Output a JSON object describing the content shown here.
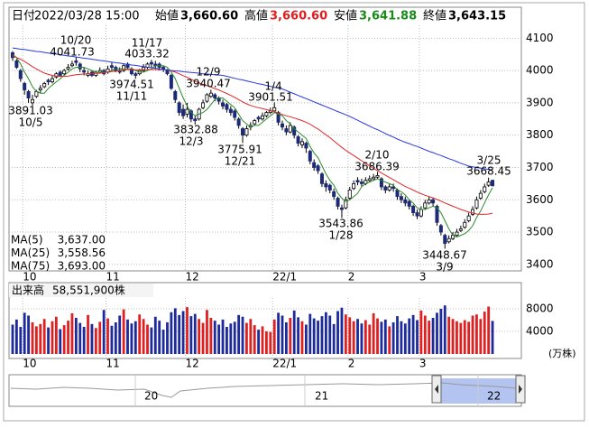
{
  "chart_data": [
    {
      "type": "candlestick",
      "header": {
        "date_label": "日付",
        "datetime": "2022/03/28 15:00",
        "open_label": "始値",
        "open": "3,660.60",
        "high_label": "高値",
        "high": "3,660.60",
        "low_label": "安値",
        "low": "3,641.88",
        "close_label": "終値",
        "close": "3,643.15"
      },
      "categories": [
        null,
        null,
        null,
        "10",
        null,
        null,
        null,
        null,
        null,
        null,
        null,
        null,
        null,
        null,
        null,
        null,
        null,
        null,
        null,
        null,
        null,
        null,
        null,
        null,
        "11",
        null,
        null,
        null,
        null,
        null,
        null,
        null,
        null,
        null,
        null,
        null,
        null,
        null,
        null,
        null,
        null,
        null,
        null,
        null,
        "12",
        null,
        null,
        null,
        null,
        null,
        null,
        null,
        null,
        null,
        null,
        null,
        null,
        null,
        null,
        null,
        null,
        null,
        null,
        null,
        null,
        null,
        "22/1",
        null,
        null,
        null,
        null,
        null,
        null,
        null,
        null,
        null,
        null,
        null,
        null,
        null,
        null,
        null,
        null,
        null,
        null,
        "2",
        null,
        null,
        null,
        null,
        null,
        null,
        null,
        null,
        null,
        null,
        null,
        null,
        null,
        null,
        null,
        null,
        null,
        "3",
        null,
        null,
        null,
        null,
        null,
        null,
        null,
        null,
        null,
        null,
        null,
        null,
        null,
        null,
        null,
        null,
        null,
        null
      ],
      "open": [
        4055,
        4030,
        4000,
        3960,
        3935,
        3900,
        3920,
        3940,
        3950,
        3970,
        3965,
        3980,
        3995,
        3990,
        4005,
        4015,
        4030,
        4020,
        4000,
        3985,
        3995,
        3985,
        3995,
        4000,
        3995,
        4015,
        4010,
        4000,
        4000,
        4020,
        4005,
        3990,
        3990,
        4000,
        4010,
        4025,
        4020,
        4020,
        4010,
        4000,
        3985,
        3935,
        3900,
        3880,
        3865,
        3875,
        3850,
        3850,
        3885,
        3905,
        3920,
        3925,
        3915,
        3900,
        3895,
        3880,
        3875,
        3850,
        3820,
        3800,
        3825,
        3835,
        3855,
        3850,
        3860,
        3870,
        3875,
        3870,
        3835,
        3820,
        3810,
        3825,
        3795,
        3770,
        3775,
        3750,
        3715,
        3705,
        3680,
        3650,
        3645,
        3625,
        3605,
        3575,
        3575,
        3605,
        3635,
        3660,
        3655,
        3650,
        3660,
        3665,
        3670,
        3665,
        3640,
        3630,
        3640,
        3630,
        3610,
        3600,
        3595,
        3580,
        3560,
        3550,
        3575,
        3590,
        3600,
        3580,
        3520,
        3490,
        3470,
        3480,
        3490,
        3505,
        3515,
        3535,
        3555,
        3575,
        3605,
        3625,
        3645,
        3660.6
      ],
      "high": [
        4060,
        4035,
        4005,
        3965,
        3940,
        3925,
        3940,
        3955,
        3965,
        3975,
        3985,
        3995,
        4000,
        4005,
        4020,
        4030,
        4041.73,
        4025,
        4010,
        4000,
        4000,
        4000,
        4010,
        4005,
        4015,
        4025,
        4015,
        4010,
        4020,
        4025,
        4010,
        3995,
        4005,
        4020,
        4025,
        4033.32,
        4030,
        4025,
        4015,
        4005,
        3990,
        3940,
        3905,
        3895,
        3900,
        3880,
        3860,
        3885,
        3910,
        3930,
        3940.47,
        3930,
        3920,
        3910,
        3900,
        3890,
        3880,
        3855,
        3825,
        3830,
        3840,
        3850,
        3860,
        3870,
        3875,
        3885,
        3901.51,
        3875,
        3845,
        3830,
        3840,
        3830,
        3800,
        3790,
        3780,
        3755,
        3725,
        3710,
        3685,
        3660,
        3650,
        3635,
        3610,
        3585,
        3610,
        3640,
        3660,
        3670,
        3665,
        3670,
        3675,
        3680,
        3686.39,
        3670,
        3645,
        3650,
        3650,
        3635,
        3620,
        3610,
        3600,
        3585,
        3570,
        3580,
        3600,
        3610,
        3605,
        3585,
        3525,
        3495,
        3490,
        3500,
        3510,
        3520,
        3540,
        3560,
        3580,
        3610,
        3630,
        3650,
        3668.45,
        3660.6
      ],
      "low": [
        4030,
        4005,
        3965,
        3925,
        3900,
        3891.03,
        3915,
        3930,
        3945,
        3955,
        3960,
        3975,
        3980,
        3985,
        4000,
        4010,
        4015,
        3995,
        3985,
        3980,
        3980,
        3980,
        3990,
        3985,
        3990,
        4000,
        3995,
        3990,
        3995,
        4005,
        3985,
        3974.51,
        3985,
        3995,
        4005,
        4010,
        4005,
        4000,
        3995,
        3985,
        3940,
        3900,
        3860,
        3850,
        3855,
        3840,
        3832.88,
        3845,
        3880,
        3900,
        3915,
        3905,
        3895,
        3880,
        3870,
        3860,
        3845,
        3820,
        3775.91,
        3795,
        3815,
        3830,
        3840,
        3845,
        3855,
        3865,
        3870,
        3830,
        3815,
        3800,
        3805,
        3790,
        3765,
        3760,
        3745,
        3710,
        3690,
        3680,
        3640,
        3625,
        3620,
        3600,
        3570,
        3543.86,
        3570,
        3600,
        3630,
        3645,
        3640,
        3645,
        3655,
        3660,
        3665,
        3630,
        3620,
        3625,
        3625,
        3600,
        3590,
        3580,
        3570,
        3550,
        3540,
        3545,
        3570,
        3585,
        3580,
        3520,
        3490,
        3448.67,
        3465,
        3475,
        3485,
        3500,
        3510,
        3530,
        3550,
        3570,
        3600,
        3620,
        3640,
        3641.88
      ],
      "close": [
        4040,
        4010,
        3975,
        3940,
        3915,
        3910,
        3935,
        3945,
        3960,
        3965,
        3975,
        3990,
        3985,
        4000,
        4010,
        4020,
        4025,
        4005,
        3995,
        3990,
        3985,
        3995,
        4000,
        3990,
        4005,
        4010,
        4000,
        3995,
        4015,
        4010,
        3990,
        3985,
        4000,
        4010,
        4020,
        4020,
        4015,
        4010,
        4005,
        3990,
        3945,
        3910,
        3870,
        3860,
        3880,
        3850,
        3845,
        3880,
        3900,
        3925,
        3930,
        3915,
        3905,
        3890,
        3880,
        3870,
        3855,
        3830,
        3800,
        3820,
        3830,
        3845,
        3850,
        3860,
        3870,
        3875,
        3885,
        3840,
        3825,
        3810,
        3830,
        3800,
        3775,
        3780,
        3760,
        3720,
        3700,
        3690,
        3650,
        3640,
        3630,
        3610,
        3580,
        3570,
        3600,
        3630,
        3650,
        3655,
        3650,
        3660,
        3665,
        3670,
        3675,
        3640,
        3630,
        3640,
        3635,
        3610,
        3600,
        3590,
        3580,
        3560,
        3550,
        3570,
        3590,
        3600,
        3590,
        3530,
        3500,
        3465,
        3480,
        3490,
        3500,
        3510,
        3530,
        3550,
        3570,
        3600,
        3620,
        3640,
        3655,
        3643.15
      ],
      "series": [
        {
          "name": "MA(5)",
          "color": "#2a8a2a",
          "value_label": "3,637.00",
          "values": [
            4050,
            4040,
            4020,
            3995,
            3975,
            3950,
            3935,
            3930,
            3930,
            3945,
            3955,
            3965,
            3975,
            3985,
            3995,
            4005,
            4010,
            4010,
            4010,
            4005,
            4000,
            3995,
            3995,
            3995,
            3995,
            4000,
            4005,
            4005,
            4005,
            4005,
            4005,
            4000,
            3995,
            3995,
            4000,
            4005,
            4015,
            4015,
            4015,
            4010,
            3995,
            3975,
            3945,
            3915,
            3890,
            3870,
            3860,
            3865,
            3870,
            3880,
            3895,
            3910,
            3915,
            3915,
            3905,
            3895,
            3885,
            3865,
            3845,
            3835,
            3825,
            3830,
            3830,
            3840,
            3850,
            3860,
            3870,
            3865,
            3860,
            3845,
            3835,
            3820,
            3810,
            3800,
            3790,
            3765,
            3745,
            3730,
            3705,
            3680,
            3660,
            3645,
            3620,
            3605,
            3595,
            3600,
            3610,
            3620,
            3640,
            3650,
            3655,
            3660,
            3665,
            3660,
            3655,
            3650,
            3645,
            3630,
            3625,
            3615,
            3600,
            3590,
            3575,
            3570,
            3570,
            3575,
            3580,
            3575,
            3560,
            3535,
            3510,
            3490,
            3485,
            3490,
            3495,
            3505,
            3520,
            3545,
            3565,
            3590,
            3615,
            3637
          ]
        },
        {
          "name": "MA(25)",
          "color": "#e02828",
          "value_label": "3,558.56",
          "values": [
            4045,
            4040,
            4035,
            4028,
            4020,
            4012,
            4005,
            3998,
            3992,
            3988,
            3985,
            3983,
            3982,
            3982,
            3983,
            3985,
            3987,
            3988,
            3989,
            3990,
            3990,
            3991,
            3992,
            3993,
            3995,
            3997,
            3998,
            4000,
            4002,
            4003,
            4003,
            4002,
            4002,
            4003,
            4003,
            4003,
            4003,
            4003,
            4003,
            4002,
            3999,
            3995,
            3990,
            3984,
            3979,
            3973,
            3967,
            3962,
            3957,
            3953,
            3949,
            3944,
            3940,
            3934,
            3929,
            3923,
            3917,
            3910,
            3903,
            3897,
            3892,
            3888,
            3885,
            3882,
            3879,
            3876,
            3873,
            3868,
            3864,
            3860,
            3857,
            3853,
            3849,
            3845,
            3840,
            3834,
            3826,
            3819,
            3810,
            3801,
            3792,
            3782,
            3772,
            3762,
            3753,
            3745,
            3737,
            3729,
            3721,
            3713,
            3705,
            3697,
            3690,
            3683,
            3676,
            3669,
            3662,
            3655,
            3648,
            3641,
            3636,
            3630,
            3624,
            3619,
            3614,
            3610,
            3606,
            3601,
            3596,
            3590,
            3585,
            3580,
            3575,
            3570,
            3566,
            3562,
            3559,
            3556,
            3555,
            3555,
            3556,
            3558.56
          ]
        },
        {
          "name": "MA(75)",
          "color": "#2838e0",
          "value_label": "3,693.00",
          "values": [
            4070,
            4068,
            4066,
            4065,
            4063,
            4061,
            4059,
            4058,
            4056,
            4054,
            4052,
            4051,
            4049,
            4047,
            4045,
            4044,
            4042,
            4040,
            4038,
            4037,
            4035,
            4033,
            4031,
            4030,
            4028,
            4026,
            4024,
            4023,
            4021,
            4019,
            4017,
            4016,
            4014,
            4012,
            4010,
            4009,
            4007,
            4005,
            4003,
            4002,
            4000,
            3999,
            3998,
            3996,
            3995,
            3994,
            3993,
            3992,
            3990,
            3989,
            3988,
            3987,
            3986,
            3985,
            3982,
            3979,
            3976,
            3973,
            3971,
            3968,
            3965,
            3962,
            3959,
            3957,
            3954,
            3951,
            3948,
            3946,
            3943,
            3938,
            3933,
            3928,
            3923,
            3918,
            3913,
            3908,
            3903,
            3898,
            3893,
            3888,
            3883,
            3878,
            3873,
            3868,
            3863,
            3858,
            3852,
            3846,
            3840,
            3834,
            3828,
            3822,
            3817,
            3811,
            3805,
            3799,
            3794,
            3788,
            3783,
            3778,
            3774,
            3769,
            3765,
            3760,
            3755,
            3750,
            3746,
            3741,
            3737,
            3732,
            3727,
            3723,
            3718,
            3713,
            3709,
            3704,
            3702,
            3700,
            3698,
            3696,
            3694,
            3693
          ]
        }
      ],
      "ylim": [
        3380,
        4140
      ],
      "yticks": [
        3400,
        3500,
        3600,
        3700,
        3800,
        3900,
        4000,
        4100
      ],
      "grid": true,
      "up_color": "#ffffff",
      "down_color": "#1c2a78",
      "annotations": [
        {
          "date": "10/20",
          "value": 4041.73
        },
        {
          "date": "10/5",
          "value": 3891.03
        },
        {
          "date": "11/17",
          "value": 4033.32
        },
        {
          "date": "11/11",
          "value": 3974.51
        },
        {
          "date": "12/9",
          "value": 3940.47
        },
        {
          "date": "12/3",
          "value": 3832.88
        },
        {
          "date": "1/4",
          "value": 3901.51
        },
        {
          "date": "12/21",
          "value": 3775.91
        },
        {
          "date": "2/10",
          "value": 3686.39
        },
        {
          "date": "1/28",
          "value": 3543.86
        },
        {
          "date": "3/25",
          "value": 3668.45
        },
        {
          "date": "3/9",
          "value": 3448.67
        }
      ]
    },
    {
      "type": "bar",
      "title": "出来高",
      "subtitle": "58,551,900株",
      "unit": "(万株)",
      "values": [
        5200,
        6100,
        4800,
        7300,
        6800,
        5600,
        4900,
        5300,
        6200,
        4700,
        5800,
        6600,
        4400,
        5100,
        5900,
        7200,
        6400,
        5500,
        4800,
        6900,
        5300,
        4600,
        5700,
        7800,
        6300,
        5000,
        5600,
        6800,
        7900,
        6100,
        5400,
        5800,
        7000,
        6200,
        5200,
        4700,
        6600,
        5900,
        4300,
        5600,
        7400,
        8100,
        6900,
        7600,
        8300,
        6700,
        7100,
        6200,
        5500,
        7800,
        6400,
        5900,
        5200,
        6100,
        4800,
        5400,
        5700,
        6900,
        6600,
        5500,
        6200,
        5100,
        4300,
        4900,
        4000,
        3900,
        6100,
        7300,
        6800,
        5600,
        6400,
        7700,
        6500,
        5800,
        5200,
        7100,
        6300,
        5900,
        6700,
        7400,
        6800,
        5300,
        7600,
        8200,
        7000,
        6500,
        5800,
        6200,
        5400,
        6000,
        5200,
        7200,
        6300,
        5700,
        6100,
        4900,
        5600,
        6700,
        5800,
        5400,
        6300,
        6900,
        6000,
        7700,
        6800,
        5900,
        6400,
        7300,
        8000,
        8600,
        6600,
        6200,
        5800,
        5500,
        6000,
        5700,
        6800,
        7000,
        6200,
        7500,
        8400,
        5855.19
      ],
      "ylim": [
        0,
        9000
      ],
      "yticks": [
        4000,
        8000
      ],
      "grid": true,
      "up_color": "#e02020",
      "down_color": "#1c2a9c"
    }
  ],
  "navigator": {
    "labels": [
      "20",
      "21",
      "22"
    ]
  }
}
